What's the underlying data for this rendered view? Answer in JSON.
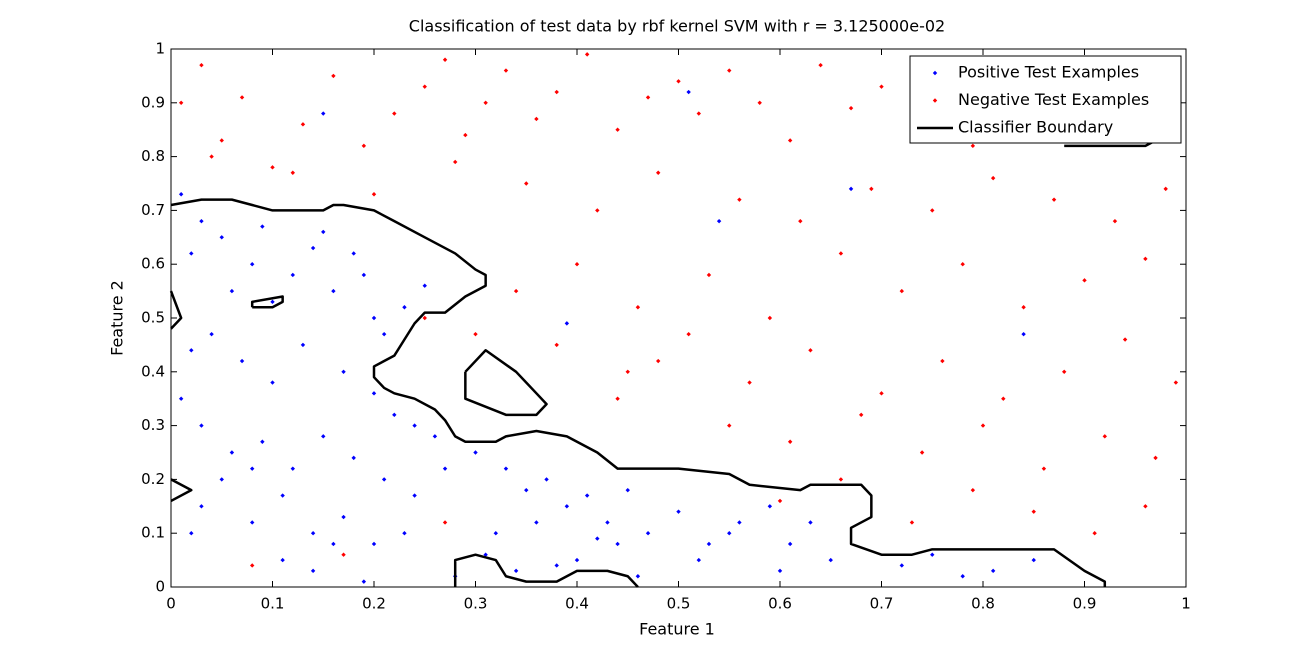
{
  "chart_data": {
    "type": "scatter",
    "title": "Classification of test data by rbf kernel SVM with r = 3.125000e-02",
    "x_label": "Feature 1",
    "y_label": "Feature 2",
    "xlim": [
      0,
      1
    ],
    "ylim": [
      0,
      1
    ],
    "xticks": [
      0,
      0.1,
      0.2,
      0.3,
      0.4,
      0.5,
      0.6,
      0.7,
      0.8,
      0.9,
      1
    ],
    "yticks": [
      0,
      0.1,
      0.2,
      0.3,
      0.4,
      0.5,
      0.6,
      0.7,
      0.8,
      0.9,
      1
    ],
    "legend_position": "upper right",
    "series": [
      {
        "name": "Positive Test Examples",
        "color": "#0000ff",
        "mode": "markers",
        "x": [
          0.01,
          0.02,
          0.03,
          0.05,
          0.06,
          0.08,
          0.09,
          0.1,
          0.12,
          0.14,
          0.15,
          0.16,
          0.18,
          0.19,
          0.2,
          0.21,
          0.23,
          0.25,
          0.02,
          0.04,
          0.07,
          0.1,
          0.13,
          0.17,
          0.2,
          0.22,
          0.24,
          0.26,
          0.01,
          0.03,
          0.06,
          0.09,
          0.12,
          0.15,
          0.18,
          0.21,
          0.24,
          0.27,
          0.03,
          0.08,
          0.11,
          0.14,
          0.17,
          0.2,
          0.23,
          0.3,
          0.33,
          0.35,
          0.37,
          0.39,
          0.41,
          0.43,
          0.45,
          0.47,
          0.5,
          0.53,
          0.56,
          0.59,
          0.61,
          0.63,
          0.65,
          0.72,
          0.75,
          0.78,
          0.81,
          0.85,
          0.32,
          0.36,
          0.4,
          0.44,
          0.28,
          0.31,
          0.34,
          0.38,
          0.42,
          0.46,
          0.52,
          0.55,
          0.6,
          0.02,
          0.05,
          0.08,
          0.11,
          0.14,
          0.16,
          0.19,
          0.15,
          0.39,
          0.51,
          0.67,
          0.84,
          0.54
        ],
        "values": [
          0.73,
          0.62,
          0.68,
          0.65,
          0.55,
          0.6,
          0.67,
          0.53,
          0.58,
          0.63,
          0.66,
          0.55,
          0.62,
          0.58,
          0.5,
          0.47,
          0.52,
          0.56,
          0.44,
          0.47,
          0.42,
          0.38,
          0.45,
          0.4,
          0.36,
          0.32,
          0.3,
          0.28,
          0.35,
          0.3,
          0.25,
          0.27,
          0.22,
          0.28,
          0.24,
          0.2,
          0.17,
          0.22,
          0.15,
          0.12,
          0.17,
          0.1,
          0.13,
          0.08,
          0.1,
          0.25,
          0.22,
          0.18,
          0.2,
          0.15,
          0.17,
          0.12,
          0.18,
          0.1,
          0.14,
          0.08,
          0.12,
          0.15,
          0.08,
          0.12,
          0.05,
          0.04,
          0.06,
          0.02,
          0.03,
          0.05,
          0.1,
          0.12,
          0.05,
          0.08,
          0.02,
          0.06,
          0.03,
          0.04,
          0.09,
          0.02,
          0.05,
          0.1,
          0.03,
          0.1,
          0.2,
          0.22,
          0.05,
          0.03,
          0.08,
          0.01,
          0.88,
          0.49,
          0.92,
          0.74,
          0.47,
          0.68
        ]
      },
      {
        "name": "Negative Test Examples",
        "color": "#ff0000",
        "mode": "markers",
        "x": [
          0.01,
          0.03,
          0.05,
          0.07,
          0.1,
          0.13,
          0.16,
          0.19,
          0.22,
          0.25,
          0.27,
          0.29,
          0.31,
          0.33,
          0.36,
          0.38,
          0.41,
          0.44,
          0.47,
          0.5,
          0.52,
          0.55,
          0.58,
          0.61,
          0.64,
          0.67,
          0.7,
          0.73,
          0.76,
          0.79,
          0.82,
          0.85,
          0.88,
          0.91,
          0.94,
          0.97,
          0.99,
          0.04,
          0.12,
          0.2,
          0.28,
          0.35,
          0.42,
          0.48,
          0.56,
          0.62,
          0.69,
          0.75,
          0.81,
          0.87,
          0.93,
          0.98,
          0.34,
          0.4,
          0.46,
          0.53,
          0.59,
          0.66,
          0.72,
          0.78,
          0.84,
          0.9,
          0.96,
          0.38,
          0.45,
          0.51,
          0.57,
          0.63,
          0.7,
          0.76,
          0.82,
          0.88,
          0.94,
          0.99,
          0.55,
          0.61,
          0.68,
          0.74,
          0.8,
          0.86,
          0.92,
          0.97,
          0.6,
          0.66,
          0.73,
          0.79,
          0.85,
          0.91,
          0.96,
          0.3,
          0.25,
          0.27,
          0.48,
          0.44,
          0.08,
          0.17
        ],
        "values": [
          0.9,
          0.97,
          0.83,
          0.91,
          0.78,
          0.86,
          0.95,
          0.82,
          0.88,
          0.93,
          0.98,
          0.84,
          0.9,
          0.96,
          0.87,
          0.92,
          0.99,
          0.85,
          0.91,
          0.94,
          0.88,
          0.96,
          0.9,
          0.83,
          0.97,
          0.89,
          0.93,
          0.86,
          0.98,
          0.82,
          0.91,
          0.95,
          0.87,
          0.93,
          0.86,
          0.9,
          0.97,
          0.8,
          0.77,
          0.73,
          0.79,
          0.75,
          0.7,
          0.77,
          0.72,
          0.68,
          0.74,
          0.7,
          0.76,
          0.72,
          0.68,
          0.74,
          0.55,
          0.6,
          0.52,
          0.58,
          0.5,
          0.62,
          0.55,
          0.6,
          0.52,
          0.57,
          0.61,
          0.45,
          0.4,
          0.47,
          0.38,
          0.44,
          0.36,
          0.42,
          0.35,
          0.4,
          0.46,
          0.38,
          0.3,
          0.27,
          0.32,
          0.25,
          0.3,
          0.22,
          0.28,
          0.24,
          0.16,
          0.2,
          0.12,
          0.18,
          0.14,
          0.1,
          0.15,
          0.47,
          0.5,
          0.12,
          0.42,
          0.35,
          0.04,
          0.06
        ]
      },
      {
        "name": "Classifier Boundary",
        "color": "#000000",
        "mode": "line",
        "x": [
          0,
          0.03,
          0.06,
          0.08,
          0.1,
          0.15,
          0.16,
          0.17,
          0.2,
          0.22,
          0.25,
          0.28,
          0.3,
          0.31,
          0.31,
          0.29,
          0.27,
          0.25,
          0.24,
          0.23,
          0.22,
          0.2,
          0.2,
          0.21,
          0.22,
          0.24,
          0.26,
          0.27,
          0.28,
          0.29,
          0.32,
          0.33,
          0.36,
          0.39,
          0.42,
          0.44,
          0.5,
          0.55,
          0.57,
          0.62,
          0.63,
          0.68,
          0.69,
          0.69,
          0.67,
          0.67,
          0.7,
          0.73,
          0.75,
          0.8,
          0.87,
          0.9,
          0.92,
          0.92,
          null,
          0.28,
          0.28,
          0.3,
          0.32,
          0.33,
          0.35,
          0.38,
          0.4,
          0.43,
          0.45,
          0.46,
          null,
          0.08,
          0.1,
          0.11,
          0.11,
          0.08,
          0.08,
          null,
          0.29,
          0.31,
          0.34,
          0.36,
          0.37,
          0.36,
          0.33,
          0.29,
          0.29,
          null,
          0.88,
          0.96,
          0.97,
          null,
          0,
          0.01,
          0,
          null,
          0,
          0.02,
          0
        ],
        "values": [
          0.71,
          0.72,
          0.72,
          0.71,
          0.7,
          0.7,
          0.71,
          0.71,
          0.7,
          0.68,
          0.65,
          0.62,
          0.59,
          0.58,
          0.56,
          0.54,
          0.51,
          0.51,
          0.49,
          0.46,
          0.43,
          0.41,
          0.39,
          0.37,
          0.36,
          0.35,
          0.33,
          0.31,
          0.28,
          0.27,
          0.27,
          0.28,
          0.29,
          0.28,
          0.25,
          0.22,
          0.22,
          0.21,
          0.19,
          0.18,
          0.19,
          0.19,
          0.17,
          0.13,
          0.11,
          0.08,
          0.06,
          0.06,
          0.07,
          0.07,
          0.07,
          0.03,
          0.01,
          0,
          null,
          0,
          0.05,
          0.06,
          0.05,
          0.02,
          0.01,
          0.01,
          0.03,
          0.03,
          0.02,
          0,
          null,
          0.52,
          0.52,
          0.53,
          0.54,
          0.53,
          0.52,
          null,
          0.4,
          0.44,
          0.4,
          0.36,
          0.34,
          0.32,
          0.32,
          0.35,
          0.4,
          null,
          0.82,
          0.82,
          0.83,
          null,
          0.48,
          0.5,
          0.55,
          null,
          0.16,
          0.18,
          0.2
        ]
      }
    ]
  }
}
